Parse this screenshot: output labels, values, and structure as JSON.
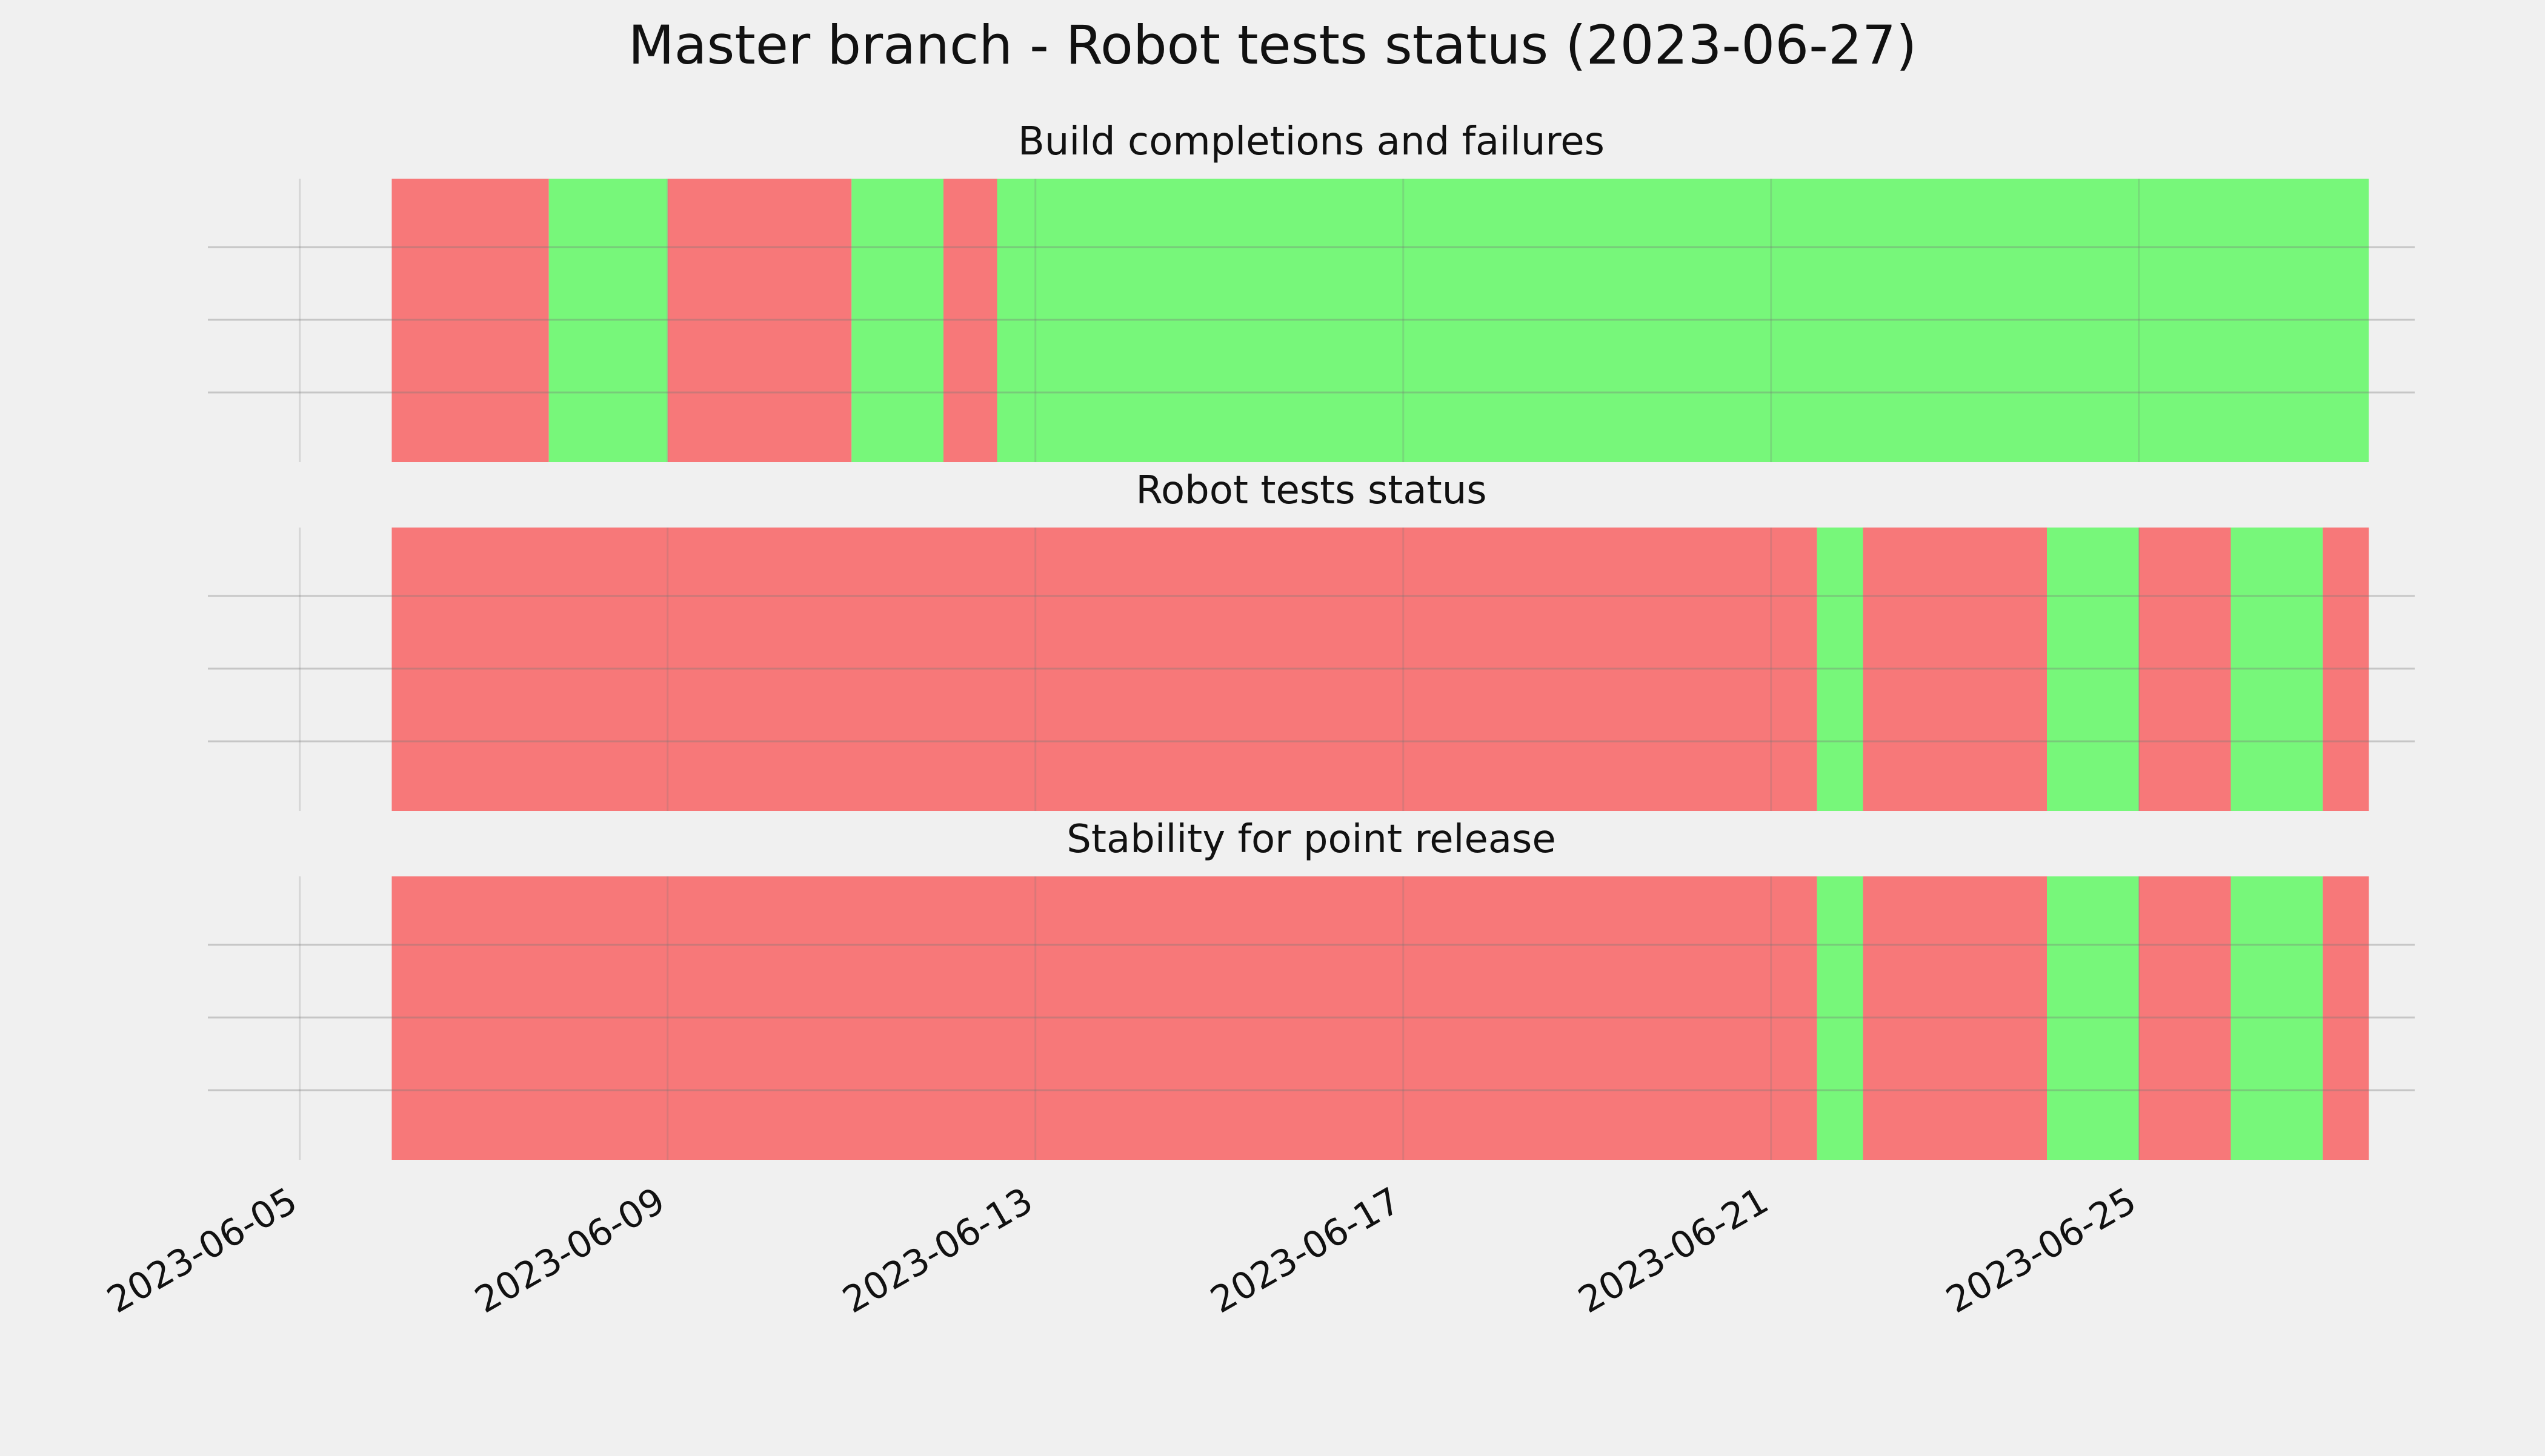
{
  "chart_data": {
    "type": "bar",
    "title": "Master branch - Robot tests status (2023-06-27)",
    "x_axis": {
      "type": "date",
      "ticks": [
        "2023-06-05",
        "2023-06-09",
        "2023-06-13",
        "2023-06-17",
        "2023-06-21",
        "2023-06-25"
      ],
      "range": [
        "2023-06-04",
        "2023-06-28"
      ]
    },
    "grid": true,
    "colors": {
      "pass": "#77f77a",
      "fail": "#f77879",
      "background": "#f0f0f0",
      "grid": "#c8c8c8"
    },
    "panels": [
      {
        "subtitle": "Build completions and failures",
        "segments": [
          {
            "start": "2023-06-06T00:00",
            "end": "2023-06-07T17:00",
            "status": "fail"
          },
          {
            "start": "2023-06-07T17:00",
            "end": "2023-06-09T00:00",
            "status": "pass"
          },
          {
            "start": "2023-06-09T00:00",
            "end": "2023-06-11T00:00",
            "status": "fail"
          },
          {
            "start": "2023-06-11T00:00",
            "end": "2023-06-12T00:00",
            "status": "pass"
          },
          {
            "start": "2023-06-12T00:00",
            "end": "2023-06-12T14:00",
            "status": "fail"
          },
          {
            "start": "2023-06-12T14:00",
            "end": "2023-06-27T12:00",
            "status": "pass"
          }
        ]
      },
      {
        "subtitle": "Robot tests status",
        "segments": [
          {
            "start": "2023-06-06T00:00",
            "end": "2023-06-21T12:00",
            "status": "fail"
          },
          {
            "start": "2023-06-21T12:00",
            "end": "2023-06-22T00:00",
            "status": "pass"
          },
          {
            "start": "2023-06-22T00:00",
            "end": "2023-06-24T00:00",
            "status": "fail"
          },
          {
            "start": "2023-06-24T00:00",
            "end": "2023-06-25T00:00",
            "status": "pass"
          },
          {
            "start": "2023-06-25T00:00",
            "end": "2023-06-26T00:00",
            "status": "fail"
          },
          {
            "start": "2023-06-26T00:00",
            "end": "2023-06-27T00:00",
            "status": "pass"
          },
          {
            "start": "2023-06-27T00:00",
            "end": "2023-06-27T12:00",
            "status": "fail"
          }
        ]
      },
      {
        "subtitle": "Stability for point release",
        "segments": [
          {
            "start": "2023-06-06T00:00",
            "end": "2023-06-21T12:00",
            "status": "fail"
          },
          {
            "start": "2023-06-21T12:00",
            "end": "2023-06-22T00:00",
            "status": "pass"
          },
          {
            "start": "2023-06-22T00:00",
            "end": "2023-06-24T00:00",
            "status": "fail"
          },
          {
            "start": "2023-06-24T00:00",
            "end": "2023-06-25T00:00",
            "status": "pass"
          },
          {
            "start": "2023-06-25T00:00",
            "end": "2023-06-26T00:00",
            "status": "fail"
          },
          {
            "start": "2023-06-26T00:00",
            "end": "2023-06-27T00:00",
            "status": "pass"
          },
          {
            "start": "2023-06-27T00:00",
            "end": "2023-06-27T12:00",
            "status": "fail"
          }
        ]
      }
    ]
  }
}
